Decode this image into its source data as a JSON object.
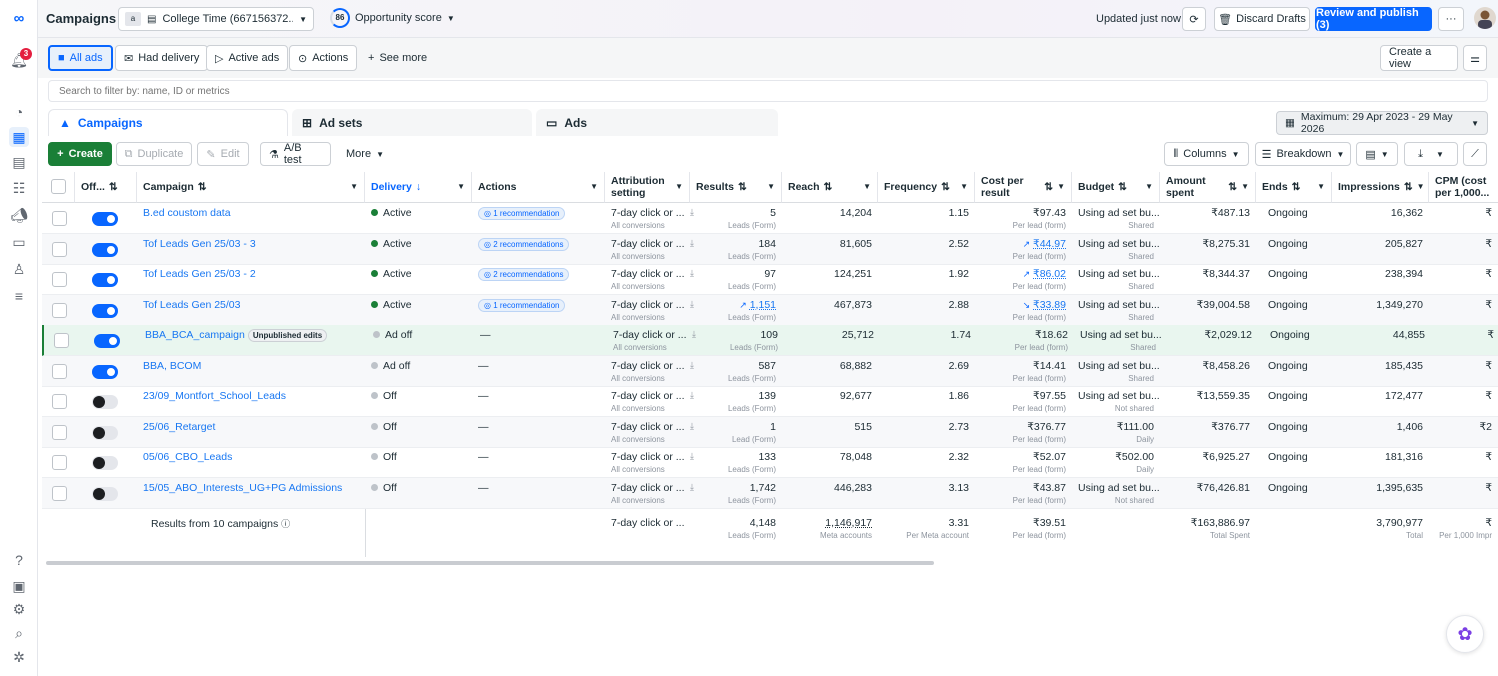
{
  "topbar": {
    "title": "Campaigns",
    "account_chip": "a",
    "account_name": "College Time (667156372...",
    "opportunity_score_value": "86",
    "opportunity_score_label": "Opportunity score",
    "updated": "Updated just now",
    "discard_label": "Discard Drafts",
    "publish_label": "Review and publish (3)",
    "more_label": "···"
  },
  "rail": {
    "notification_count": "3"
  },
  "filters": {
    "items": [
      {
        "label": "All ads"
      },
      {
        "label": "Had delivery"
      },
      {
        "label": "Active ads"
      },
      {
        "label": "Actions"
      }
    ],
    "see_more": "See more",
    "create_view": "Create a view"
  },
  "search": {
    "placeholder": "Search to filter by: name, ID or metrics"
  },
  "levels": {
    "campaigns": "Campaigns",
    "adsets": "Ad sets",
    "ads": "Ads",
    "date_range": "Maximum: 29 Apr 2023 - 29 May 2026"
  },
  "toolbar": {
    "create": "Create",
    "duplicate": "Duplicate",
    "edit": "Edit",
    "ab_test": "A/B test",
    "more": "More",
    "columns": "Columns",
    "breakdown": "Breakdown"
  },
  "columns": {
    "off": "Off...",
    "campaign": "Campaign",
    "delivery": "Delivery",
    "actions": "Actions",
    "attribution_1": "Attribution",
    "attribution_2": "setting",
    "results": "Results",
    "reach": "Reach",
    "frequency": "Frequency",
    "cpr_1": "Cost per",
    "cpr_2": "result",
    "budget": "Budget",
    "spent_1": "Amount",
    "spent_2": "spent",
    "ends": "Ends",
    "impressions": "Impressions",
    "cpm_1": "CPM (cost",
    "cpm_2": "per 1,000..."
  },
  "rows": [
    {
      "toggle": "on",
      "name": "B.ed coustom data",
      "badge": "",
      "delivery": "Active",
      "actions": "1 recommendation",
      "attr": "7-day click or ...",
      "attr_sub": "All conversions",
      "results": "5",
      "results_sub": "Leads (Form)",
      "results_trend": "",
      "reach": "14,204",
      "freq": "1.15",
      "cpr": "₹97.43",
      "cpr_sub": "Per lead (form)",
      "cpr_trend": "",
      "budget": "Using ad set bu...",
      "budget_sub": "Shared",
      "spent": "₹487.13",
      "ends": "Ongoing",
      "impr": "16,362",
      "cpm": "₹"
    },
    {
      "toggle": "on",
      "name": "Tof Leads Gen 25/03 - 3",
      "badge": "",
      "delivery": "Active",
      "actions": "2 recommendations",
      "attr": "7-day click or ...",
      "attr_sub": "All conversions",
      "results": "184",
      "results_sub": "Leads (Form)",
      "results_trend": "",
      "reach": "81,605",
      "freq": "2.52",
      "cpr": "₹44.97",
      "cpr_sub": "Per lead (form)",
      "cpr_trend": "↗",
      "budget": "Using ad set bu...",
      "budget_sub": "Shared",
      "spent": "₹8,275.31",
      "ends": "Ongoing",
      "impr": "205,827",
      "cpm": "₹"
    },
    {
      "toggle": "on",
      "name": "Tof Leads Gen 25/03 - 2",
      "badge": "",
      "delivery": "Active",
      "actions": "2 recommendations",
      "attr": "7-day click or ...",
      "attr_sub": "All conversions",
      "results": "97",
      "results_sub": "Leads (Form)",
      "results_trend": "",
      "reach": "124,251",
      "freq": "1.92",
      "cpr": "₹86.02",
      "cpr_sub": "Per lead (form)",
      "cpr_trend": "↗",
      "budget": "Using ad set bu...",
      "budget_sub": "Shared",
      "spent": "₹8,344.37",
      "ends": "Ongoing",
      "impr": "238,394",
      "cpm": "₹"
    },
    {
      "toggle": "on",
      "name": "Tof Leads Gen 25/03",
      "badge": "",
      "delivery": "Active",
      "actions": "1 recommendation",
      "attr": "7-day click or ...",
      "attr_sub": "All conversions",
      "results": "1,151",
      "results_sub": "Leads (Form)",
      "results_trend": "↗",
      "reach": "467,873",
      "freq": "2.88",
      "cpr": "₹33.89",
      "cpr_sub": "Per lead (form)",
      "cpr_trend": "↘",
      "budget": "Using ad set bu...",
      "budget_sub": "Shared",
      "spent": "₹39,004.58",
      "ends": "Ongoing",
      "impr": "1,349,270",
      "cpm": "₹"
    },
    {
      "toggle": "on",
      "name": "BBA_BCA_campaign",
      "badge": "Unpublished edits",
      "delivery": "Ad off",
      "actions": "—",
      "attr": "7-day click or ...",
      "attr_sub": "All conversions",
      "results": "109",
      "results_sub": "Leads (Form)",
      "results_trend": "",
      "reach": "25,712",
      "freq": "1.74",
      "cpr": "₹18.62",
      "cpr_sub": "Per lead (form)",
      "cpr_trend": "",
      "budget": "Using ad set bu...",
      "budget_sub": "Shared",
      "spent": "₹2,029.12",
      "ends": "Ongoing",
      "impr": "44,855",
      "cpm": "₹"
    },
    {
      "toggle": "on",
      "name": "BBA, BCOM",
      "badge": "",
      "delivery": "Ad off",
      "actions": "—",
      "attr": "7-day click or ...",
      "attr_sub": "All conversions",
      "results": "587",
      "results_sub": "Leads (Form)",
      "results_trend": "",
      "reach": "68,882",
      "freq": "2.69",
      "cpr": "₹14.41",
      "cpr_sub": "Per lead (form)",
      "cpr_trend": "",
      "budget": "Using ad set bu...",
      "budget_sub": "Shared",
      "spent": "₹8,458.26",
      "ends": "Ongoing",
      "impr": "185,435",
      "cpm": "₹"
    },
    {
      "toggle": "off",
      "name": "23/09_Montfort_School_Leads",
      "badge": "",
      "delivery": "Off",
      "actions": "—",
      "attr": "7-day click or ...",
      "attr_sub": "All conversions",
      "results": "139",
      "results_sub": "Leads (Form)",
      "results_trend": "",
      "reach": "92,677",
      "freq": "1.86",
      "cpr": "₹97.55",
      "cpr_sub": "Per lead (form)",
      "cpr_trend": "",
      "budget": "Using ad set bu...",
      "budget_sub": "Not shared",
      "spent": "₹13,559.35",
      "ends": "Ongoing",
      "impr": "172,477",
      "cpm": "₹"
    },
    {
      "toggle": "off",
      "name": "25/06_Retarget",
      "badge": "",
      "delivery": "Off",
      "actions": "—",
      "attr": "7-day click or ...",
      "attr_sub": "All conversions",
      "results": "1",
      "results_sub": "Lead (Form)",
      "results_trend": "",
      "reach": "515",
      "freq": "2.73",
      "cpr": "₹376.77",
      "cpr_sub": "Per lead (form)",
      "cpr_trend": "",
      "budget": "₹111.00",
      "budget_sub": "Daily",
      "spent": "₹376.77",
      "ends": "Ongoing",
      "impr": "1,406",
      "cpm": "₹2"
    },
    {
      "toggle": "off",
      "name": "05/06_CBO_Leads",
      "badge": "",
      "delivery": "Off",
      "actions": "—",
      "attr": "7-day click or ...",
      "attr_sub": "All conversions",
      "results": "133",
      "results_sub": "Leads (Form)",
      "results_trend": "",
      "reach": "78,048",
      "freq": "2.32",
      "cpr": "₹52.07",
      "cpr_sub": "Per lead (form)",
      "cpr_trend": "",
      "budget": "₹502.00",
      "budget_sub": "Daily",
      "spent": "₹6,925.27",
      "ends": "Ongoing",
      "impr": "181,316",
      "cpm": "₹"
    },
    {
      "toggle": "off",
      "name": "15/05_ABO_Interests_UG+PG Admissions",
      "badge": "",
      "delivery": "Off",
      "actions": "—",
      "attr": "7-day click or ...",
      "attr_sub": "All conversions",
      "results": "1,742",
      "results_sub": "Leads (Form)",
      "results_trend": "",
      "reach": "446,283",
      "freq": "3.13",
      "cpr": "₹43.87",
      "cpr_sub": "Per lead (form)",
      "cpr_trend": "",
      "budget": "Using ad set bu...",
      "budget_sub": "Not shared",
      "spent": "₹76,426.81",
      "ends": "Ongoing",
      "impr": "1,395,635",
      "cpm": "₹"
    }
  ],
  "summary": {
    "label": "Results from 10 campaigns",
    "attr": "7-day click or ...",
    "results": "4,148",
    "results_sub": "Leads (Form)",
    "reach": "1,146,917",
    "reach_sub": "Meta accounts",
    "freq": "3.31",
    "freq_sub": "Per Meta account",
    "cpr": "₹39.51",
    "cpr_sub": "Per lead (form)",
    "spent": "₹163,886.97",
    "spent_sub": "Total Spent",
    "impr": "3,790,977",
    "impr_sub": "Total",
    "cpm": "₹",
    "cpm_sub": "Per 1,000 Impr"
  },
  "colors": {
    "accent": "#0866ff",
    "create": "#1a7f37",
    "active_dot": "#1a7f37",
    "off_dot": "#bec3c9"
  }
}
